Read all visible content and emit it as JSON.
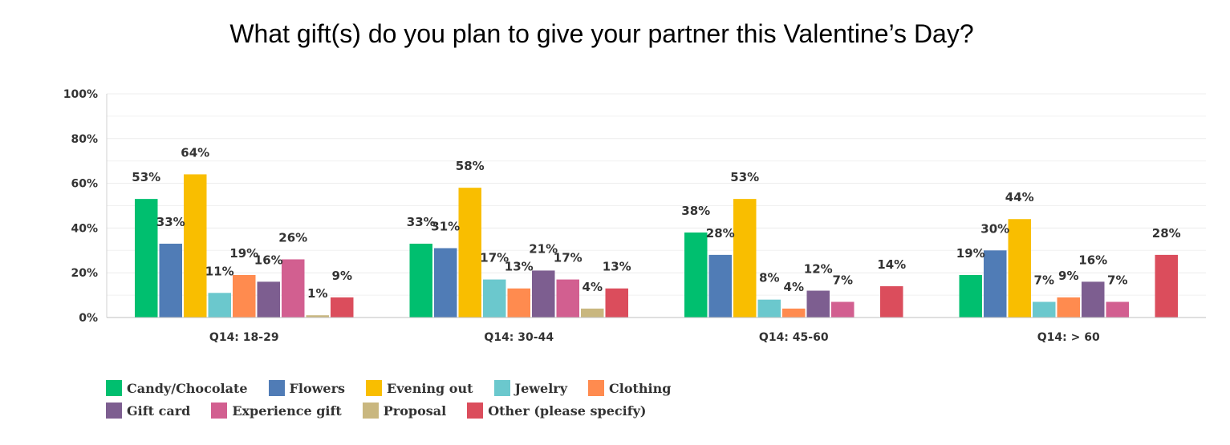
{
  "chart_data": {
    "type": "bar",
    "title": "What gift(s) do you plan to give your partner this Valentine’s Day?",
    "xlabel": "",
    "ylabel": "",
    "ylim": [
      0,
      100
    ],
    "yticks": [
      "0%",
      "20%",
      "40%",
      "60%",
      "80%",
      "100%"
    ],
    "grid": true,
    "legend_position": "bottom-left",
    "categories": [
      "Q14: 18-29",
      "Q14: 30-44",
      "Q14: 45-60",
      "Q14: > 60"
    ],
    "series": [
      {
        "name": "Candy/Chocolate",
        "color": "#00BF6F",
        "values": [
          53,
          33,
          38,
          19
        ]
      },
      {
        "name": "Flowers",
        "color": "#507CB6",
        "values": [
          33,
          31,
          28,
          30
        ]
      },
      {
        "name": "Evening out",
        "color": "#F9BE00",
        "values": [
          64,
          58,
          53,
          44
        ]
      },
      {
        "name": "Jewelry",
        "color": "#6BC8CD",
        "values": [
          11,
          17,
          8,
          7
        ]
      },
      {
        "name": "Clothing",
        "color": "#FF8B4F",
        "values": [
          19,
          13,
          4,
          9
        ]
      },
      {
        "name": "Gift card",
        "color": "#7D5E90",
        "values": [
          16,
          21,
          12,
          16
        ]
      },
      {
        "name": "Experience gift",
        "color": "#D25F90",
        "values": [
          26,
          17,
          7,
          7
        ]
      },
      {
        "name": "Proposal",
        "color": "#C9B77F",
        "values": [
          1,
          4,
          null,
          null
        ]
      },
      {
        "name": "Other (please specify)",
        "color": "#DB4D5C",
        "values": [
          9,
          13,
          14,
          28
        ]
      }
    ]
  }
}
